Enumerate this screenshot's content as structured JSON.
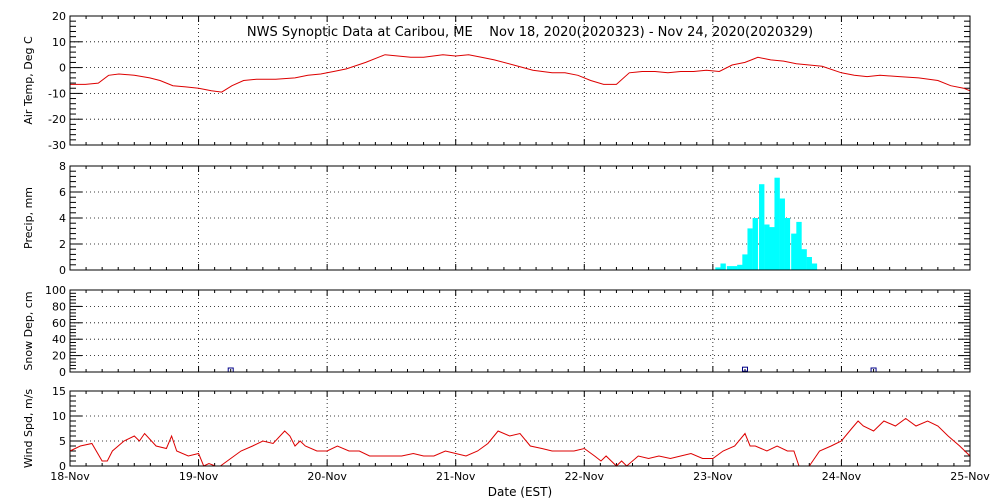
{
  "chart_data": {
    "type": "line",
    "title": "NWS Synoptic Data at Caribou, ME    Nov 18, 2020(2020323) - Nov 24, 2020(2020329)",
    "xlabel": "Date (EST)",
    "x_ticks": [
      "18-Nov",
      "19-Nov",
      "20-Nov",
      "21-Nov",
      "22-Nov",
      "23-Nov",
      "24-Nov",
      "25-Nov"
    ],
    "xlim": [
      0,
      7
    ],
    "colors": {
      "line": "#dd0000",
      "bars": "#00ffff",
      "snow": "#000088"
    },
    "panels": [
      {
        "type": "line",
        "ylabel": "Air Temp, Deg C",
        "ylim": [
          -30,
          20
        ],
        "yticks": [
          "-30",
          "-20",
          "-10",
          "0",
          "10",
          "20"
        ],
        "series": [
          {
            "x": [
              0.0,
              0.12,
              0.22,
              0.3,
              0.38,
              0.5,
              0.62,
              0.7,
              0.8,
              0.9,
              1.0,
              1.1,
              1.18,
              1.26,
              1.35,
              1.45,
              1.6,
              1.75,
              1.85,
              1.95,
              2.05,
              2.15,
              2.3,
              2.45,
              2.55,
              2.65,
              2.75,
              2.9,
              3.0,
              3.1,
              3.2,
              3.3,
              3.45,
              3.6,
              3.75,
              3.85,
              3.95,
              4.05,
              4.15,
              4.25,
              4.35,
              4.45,
              4.55,
              4.65,
              4.75,
              4.85,
              4.95,
              5.05,
              5.15,
              5.25,
              5.3,
              5.35,
              5.45,
              5.55,
              5.65,
              5.75,
              5.85,
              6.0,
              6.1,
              6.2,
              6.3,
              6.45,
              6.6,
              6.75,
              6.85,
              6.95,
              7.0
            ],
            "y": [
              -6.5,
              -6.5,
              -6,
              -3,
              -2.5,
              -3,
              -4,
              -5,
              -7,
              -7.5,
              -8,
              -9,
              -9.5,
              -7,
              -5,
              -4.5,
              -4.5,
              -4,
              -3,
              -2.5,
              -1.5,
              -0.5,
              2,
              5,
              4.5,
              4,
              4,
              5,
              4.5,
              5,
              4,
              3,
              1,
              -1,
              -2,
              -2,
              -3,
              -5,
              -6.5,
              -6.5,
              -2,
              -1.5,
              -1.5,
              -2,
              -1.5,
              -1.5,
              -1,
              -1.5,
              1,
              2,
              3,
              4,
              3,
              2.5,
              1.5,
              1,
              0.5,
              -2,
              -3,
              -3.5,
              -3,
              -3.5,
              -4,
              -5,
              -7,
              -8,
              -9
            ]
          }
        ]
      },
      {
        "type": "bar",
        "ylabel": "Precip, mm",
        "ylim": [
          0,
          8
        ],
        "yticks": [
          "0",
          "2",
          "4",
          "6",
          "8"
        ],
        "bin_width": 0.0417,
        "x": [
          5.04,
          5.08,
          5.13,
          5.17,
          5.21,
          5.25,
          5.29,
          5.33,
          5.38,
          5.42,
          5.46,
          5.5,
          5.54,
          5.58,
          5.63,
          5.67,
          5.71,
          5.75,
          5.79
        ],
        "values": [
          0.2,
          0.5,
          0.3,
          0.3,
          0.4,
          1.2,
          3.2,
          4.0,
          6.6,
          3.5,
          3.3,
          7.1,
          5.5,
          4.0,
          2.8,
          3.7,
          1.6,
          1.0,
          0.5
        ]
      },
      {
        "type": "scatter",
        "ylabel": "Snow Dep, cm",
        "ylim": [
          0,
          100
        ],
        "yticks": [
          "0",
          "20",
          "40",
          "60",
          "80",
          "100"
        ],
        "x": [
          1.25,
          5.25,
          6.25
        ],
        "y": [
          0,
          1,
          0
        ]
      },
      {
        "type": "line",
        "ylabel": "Wind Spd, m/s",
        "ylim": [
          0,
          15
        ],
        "yticks": [
          "0",
          "5",
          "10",
          "15"
        ],
        "series": [
          {
            "x": [
              0.0,
              0.08,
              0.17,
              0.25,
              0.29,
              0.33,
              0.42,
              0.5,
              0.54,
              0.58,
              0.67,
              0.75,
              0.79,
              0.83,
              0.92,
              1.0,
              1.04,
              1.08,
              1.13,
              1.17,
              1.25,
              1.33,
              1.42,
              1.5,
              1.58,
              1.67,
              1.71,
              1.75,
              1.79,
              1.83,
              1.92,
              2.0,
              2.08,
              2.17,
              2.25,
              2.33,
              2.42,
              2.5,
              2.58,
              2.67,
              2.75,
              2.83,
              2.92,
              3.0,
              3.08,
              3.17,
              3.25,
              3.33,
              3.42,
              3.5,
              3.58,
              3.67,
              3.75,
              3.83,
              3.92,
              4.0,
              4.08,
              4.13,
              4.17,
              4.25,
              4.29,
              4.33,
              4.42,
              4.5,
              4.58,
              4.67,
              4.75,
              4.83,
              4.92,
              5.0,
              5.08,
              5.17,
              5.25,
              5.29,
              5.33,
              5.42,
              5.5,
              5.58,
              5.63,
              5.67,
              5.75,
              5.83,
              5.92,
              6.0,
              6.08,
              6.13,
              6.17,
              6.25,
              6.33,
              6.42,
              6.5,
              6.58,
              6.67,
              6.75,
              6.83,
              6.92,
              7.0
            ],
            "y": [
              3,
              4,
              4.5,
              1,
              1,
              3,
              5,
              6,
              5,
              6.5,
              4,
              3.5,
              6,
              3,
              2,
              2.5,
              0,
              0.5,
              0,
              0,
              1.5,
              3,
              4,
              5,
              4.5,
              7,
              6,
              4,
              5,
              4,
              3,
              3,
              4,
              3,
              3,
              2,
              2,
              2,
              2,
              2.5,
              2,
              2,
              3,
              2.5,
              2,
              3,
              4.5,
              7,
              6,
              6.5,
              4,
              3.5,
              3,
              3,
              3,
              3.5,
              2,
              1,
              2,
              0,
              1,
              0,
              2,
              1.5,
              2,
              1.5,
              2,
              2.5,
              1.5,
              1.5,
              3,
              4,
              6.5,
              4,
              4,
              3,
              4,
              3,
              3,
              0,
              0,
              3,
              4,
              5,
              7.5,
              9,
              8,
              7,
              9,
              8,
              9.5,
              8,
              9,
              8,
              6,
              4,
              2
            ]
          }
        ]
      }
    ]
  }
}
